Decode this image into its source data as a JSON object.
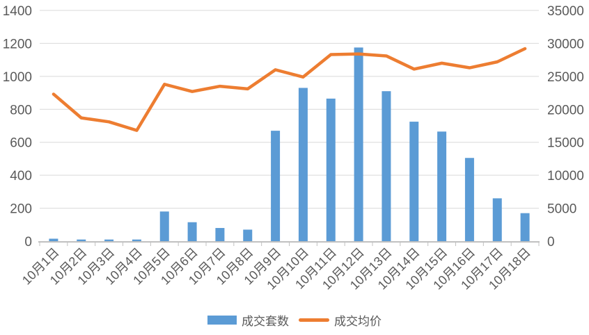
{
  "chart_data": {
    "type": "bar",
    "title": "",
    "categories": [
      "10月1日",
      "10月2日",
      "10月3日",
      "10月4日",
      "10月5日",
      "10月6日",
      "10月7日",
      "10月8日",
      "10月9日",
      "10月10日",
      "10月11日",
      "10月12日",
      "10月13日",
      "10月14日",
      "10月15日",
      "10月16日",
      "10月17日",
      "10月18日"
    ],
    "series": [
      {
        "name": "成交套数",
        "type": "bar",
        "axis": "left",
        "color": "#5B9BD5",
        "values": [
          15,
          10,
          10,
          10,
          180,
          115,
          80,
          70,
          670,
          930,
          865,
          1175,
          910,
          725,
          665,
          505,
          260,
          170
        ]
      },
      {
        "name": "成交均价",
        "type": "line",
        "axis": "right",
        "color": "#ED7D31",
        "values": [
          22300,
          18700,
          18100,
          16800,
          23800,
          22700,
          23500,
          23100,
          26000,
          24900,
          28300,
          28400,
          28100,
          26100,
          27000,
          26300,
          27200,
          29200
        ]
      }
    ],
    "left_axis": {
      "min": 0,
      "max": 1400,
      "step": 200,
      "tick_labels": [
        "0",
        "200",
        "400",
        "600",
        "800",
        "1000",
        "1200",
        "1400"
      ]
    },
    "right_axis": {
      "min": 0,
      "max": 35000,
      "step": 5000,
      "tick_labels": [
        "0",
        "5000",
        "10000",
        "15000",
        "20000",
        "25000",
        "30000",
        "35000"
      ]
    },
    "grid": true,
    "legend_position": "bottom"
  },
  "colors": {
    "bar": "#5B9BD5",
    "line": "#ED7D31",
    "gridline": "#D9D9D9",
    "axis_line": "#C0C0C0",
    "label_text": "#595959",
    "background": "#FFFFFF"
  }
}
